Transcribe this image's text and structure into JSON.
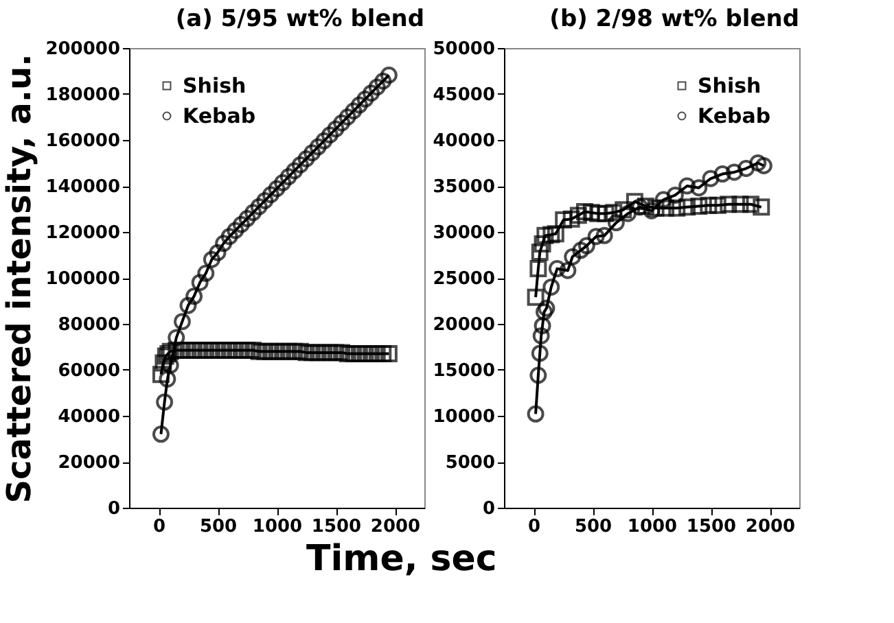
{
  "chart_data": [
    {
      "type": "line",
      "title": "(a) 5/95 wt% blend",
      "xlabel": "Time, sec",
      "ylabel": "Scattered intensity, a.u.",
      "xlim": [
        -250,
        2250
      ],
      "xticks": [
        0,
        500,
        1000,
        1500,
        2000
      ],
      "ylim": [
        0,
        200000
      ],
      "yticks": [
        0,
        20000,
        40000,
        60000,
        80000,
        100000,
        120000,
        140000,
        160000,
        180000,
        200000
      ],
      "grid": false,
      "legend": "top left",
      "line_style": "solid",
      "series": [
        {
          "name": "Shish",
          "color": "#000000",
          "marker": "square",
          "x": [
            20,
            40,
            60,
            80,
            100,
            150,
            200,
            250,
            300,
            350,
            400,
            450,
            500,
            550,
            600,
            650,
            700,
            750,
            800,
            850,
            900,
            950,
            1000,
            1050,
            1100,
            1150,
            1200,
            1250,
            1300,
            1350,
            1400,
            1450,
            1500,
            1550,
            1600,
            1650,
            1700,
            1750,
            1800,
            1850,
            1900,
            1950
          ],
          "values": [
            58000,
            63000,
            66000,
            67000,
            68000,
            68500,
            68500,
            68500,
            68500,
            68500,
            68500,
            68500,
            68500,
            68500,
            68500,
            68500,
            68500,
            68500,
            68500,
            68000,
            68000,
            68000,
            68000,
            68000,
            68000,
            68000,
            68000,
            67500,
            67500,
            67500,
            67500,
            67500,
            67500,
            67500,
            67000,
            67000,
            67000,
            67000,
            67000,
            67000,
            67000,
            67000
          ]
        },
        {
          "name": "Kebab",
          "color": "#000000",
          "marker": "circle",
          "x": [
            20,
            50,
            75,
            100,
            150,
            200,
            250,
            300,
            350,
            400,
            450,
            500,
            550,
            600,
            650,
            700,
            750,
            800,
            850,
            900,
            950,
            1000,
            1050,
            1100,
            1150,
            1200,
            1250,
            1300,
            1350,
            1400,
            1450,
            1500,
            1550,
            1600,
            1650,
            1700,
            1750,
            1800,
            1850,
            1900,
            1950
          ],
          "values": [
            32000,
            46000,
            56000,
            62000,
            74000,
            81000,
            88000,
            92000,
            98000,
            102000,
            108000,
            111000,
            115000,
            118000,
            120600,
            123200,
            125800,
            128400,
            131000,
            133600,
            136200,
            138800,
            141400,
            144000,
            146600,
            149200,
            151800,
            154400,
            157000,
            159600,
            162200,
            164800,
            167400,
            170000,
            172600,
            175200,
            177800,
            180400,
            183000,
            185600,
            188200
          ]
        }
      ]
    },
    {
      "type": "line",
      "title": "(b) 2/98 wt% blend",
      "xlim": [
        -250,
        2250
      ],
      "xticks": [
        0,
        500,
        1000,
        1500,
        2000
      ],
      "ylim": [
        0,
        50000
      ],
      "yticks": [
        0,
        5000,
        10000,
        15000,
        20000,
        25000,
        30000,
        35000,
        40000,
        45000,
        50000
      ],
      "grid": false,
      "legend": "top right",
      "line_style": "solid",
      "series": [
        {
          "name": "Shish",
          "color": "#000000",
          "marker": "square",
          "x": [
            18,
            40,
            54,
            76,
            98,
            150,
            188,
            254,
            321,
            380,
            433,
            490,
            545,
            610,
            679,
            760,
            857,
            950,
            1036,
            1120,
            1214,
            1300,
            1400,
            1482,
            1560,
            1650,
            1750,
            1840,
            1929
          ],
          "values": [
            22900,
            26000,
            27800,
            28700,
            29600,
            29700,
            29800,
            31300,
            31400,
            31800,
            32200,
            32100,
            32000,
            32000,
            32100,
            32400,
            33300,
            32800,
            32600,
            32600,
            32600,
            32700,
            32800,
            32900,
            32900,
            33000,
            33000,
            33000,
            32700
          ]
        },
        {
          "name": "Kebab",
          "color": "#000000",
          "marker": "circle",
          "x": [
            18,
            40,
            54,
            65,
            76,
            90,
            110,
            150,
            200,
            290,
            330,
            400,
            450,
            530,
            600,
            700,
            800,
            900,
            1000,
            1100,
            1200,
            1300,
            1400,
            1500,
            1600,
            1700,
            1800,
            1900,
            1950
          ],
          "values": [
            10200,
            14400,
            16800,
            18700,
            19800,
            21300,
            21700,
            24000,
            26000,
            25800,
            27300,
            28000,
            28500,
            29500,
            29600,
            31000,
            32000,
            32700,
            32300,
            33500,
            34000,
            35000,
            34800,
            35800,
            36300,
            36500,
            36900,
            37500,
            37200
          ]
        }
      ]
    }
  ]
}
